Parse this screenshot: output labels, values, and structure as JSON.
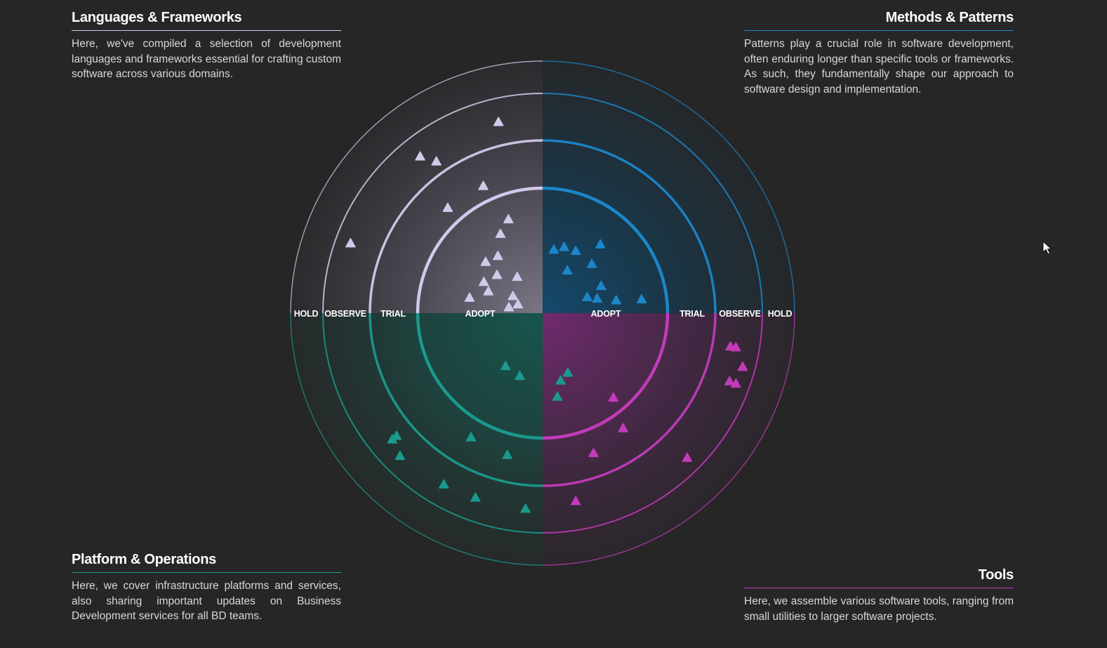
{
  "quadrants": {
    "languages": {
      "title": "Languages & Frameworks",
      "description": "Here, we've compiled a selection of development languages and frameworks essential for crafting custom software across various domains.",
      "color": "#cfc9ea"
    },
    "methods": {
      "title": "Methods & Patterns",
      "description": "Patterns play a crucial role in software development, often enduring longer than specific tools or frameworks. As such, they fundamentally shape our approach to software design and implementation.",
      "color": "#1b86c9"
    },
    "platform": {
      "title": "Platform & Operations",
      "description": "Here, we cover infrastructure platforms and services, also sharing important updates on Business Development services for all BD teams.",
      "color": "#1a9a8c"
    },
    "tools": {
      "title": "Tools",
      "description": "Here, we assemble various software tools, ranging from small utilities to larger software projects.",
      "color": "#c23bb8"
    }
  },
  "rings": {
    "adopt": "ADOPT",
    "trial": "TRIAL",
    "observe": "OBSERVE",
    "hold": "HOLD"
  },
  "blips": {
    "languages": [
      {
        "ring": "adopt",
        "angle": 160,
        "radius": 0.12
      },
      {
        "ring": "adopt",
        "angle": 150,
        "radius": 0.2
      },
      {
        "ring": "adopt",
        "angle": 170,
        "radius": 0.2
      },
      {
        "ring": "adopt",
        "angle": 125,
        "radius": 0.3
      },
      {
        "ring": "adopt",
        "angle": 152,
        "radius": 0.52
      },
      {
        "ring": "adopt",
        "angle": 168,
        "radius": 0.6
      },
      {
        "ring": "adopt",
        "angle": 158,
        "radius": 0.44
      },
      {
        "ring": "adopt",
        "angle": 140,
        "radius": 0.45
      },
      {
        "ring": "adopt",
        "angle": 118,
        "radius": 0.75
      },
      {
        "ring": "adopt",
        "angle": 110,
        "radius": 0.85
      },
      {
        "ring": "adopt",
        "angle": 138,
        "radius": 0.62
      },
      {
        "ring": "adopt",
        "angle": 128,
        "radius": 0.58
      },
      {
        "ring": "trial",
        "angle": 132,
        "radius": 0.25
      },
      {
        "ring": "trial",
        "angle": 115,
        "radius": 0.2
      },
      {
        "ring": "observe",
        "angle": 125,
        "radius": 0.1
      },
      {
        "ring": "observe",
        "angle": 128,
        "radius": 0.6
      },
      {
        "ring": "observe",
        "angle": 160,
        "radius": 0.8
      },
      {
        "ring": "observe",
        "angle": 103,
        "radius": 0.5
      }
    ],
    "methods": [
      {
        "ring": "adopt",
        "angle": 15,
        "radius": 0.42
      },
      {
        "ring": "adopt",
        "angle": 25,
        "radius": 0.5
      },
      {
        "ring": "adopt",
        "angle": 45,
        "radius": 0.55
      },
      {
        "ring": "adopt",
        "angle": 50,
        "radius": 0.75
      },
      {
        "ring": "adopt",
        "angle": 62,
        "radius": 0.56
      },
      {
        "ring": "adopt",
        "angle": 72,
        "radius": 0.55
      },
      {
        "ring": "adopt",
        "angle": 60,
        "radius": 0.35
      },
      {
        "ring": "adopt",
        "angle": 80,
        "radius": 0.5
      },
      {
        "ring": "adopt",
        "angle": 20,
        "radius": 0.33
      },
      {
        "ring": "adopt",
        "angle": 10,
        "radius": 0.6
      },
      {
        "ring": "adopt",
        "angle": 8,
        "radius": 0.85
      }
    ],
    "platform": [
      {
        "ring": "adopt",
        "angle": 235,
        "radius": 0.5
      },
      {
        "ring": "adopt",
        "angle": 285,
        "radius": 0.55
      },
      {
        "ring": "adopt",
        "angle": 293,
        "radius": 0.5
      },
      {
        "ring": "adopt",
        "angle": 250,
        "radius": 0.52
      },
      {
        "ring": "adopt",
        "angle": 280,
        "radius": 0.7
      },
      {
        "ring": "observe",
        "angle": 250,
        "radius": 0.5
      },
      {
        "ring": "observe",
        "angle": 225,
        "radius": 0.7
      },
      {
        "ring": "observe",
        "angle": 220,
        "radius": 0.5
      },
      {
        "ring": "observe",
        "angle": 220,
        "radius": 0.3
      },
      {
        "ring": "observe",
        "angle": 240,
        "radius": 0.55
      },
      {
        "ring": "trial",
        "angle": 256,
        "radius": 0.4
      },
      {
        "ring": "trial",
        "angle": 240,
        "radius": 0.3
      },
      {
        "ring": "observe",
        "angle": 265,
        "radius": 0.5
      }
    ],
    "tools": [
      {
        "ring": "adopt",
        "angle": 310,
        "radius": 0.95
      },
      {
        "ring": "trial",
        "angle": 305,
        "radius": 0.2
      },
      {
        "ring": "trial",
        "angle": 290,
        "radius": 0.5
      },
      {
        "ring": "observe",
        "angle": 315,
        "radius": 0.8
      },
      {
        "ring": "observe",
        "angle": 340,
        "radius": 0.6
      },
      {
        "ring": "observe",
        "angle": 350,
        "radius": 0.5
      },
      {
        "ring": "observe",
        "angle": 345,
        "radius": 0.9
      },
      {
        "ring": "observe",
        "angle": 350,
        "radius": 0.3
      },
      {
        "ring": "observe",
        "angle": 340,
        "radius": 0.85
      },
      {
        "ring": "observe",
        "angle": 280,
        "radius": 0.3
      }
    ]
  },
  "cursor": "pointer-icon"
}
